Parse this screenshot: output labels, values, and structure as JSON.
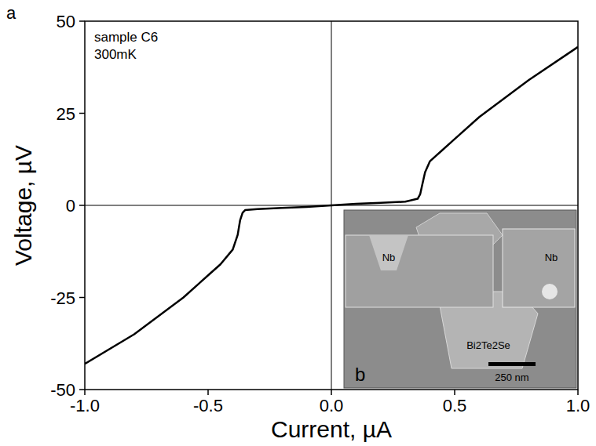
{
  "chart_data": {
    "type": "line",
    "panel_label": "a",
    "annotations": [
      "sample C6",
      "300mK"
    ],
    "x_label": "Current, µA",
    "y_label": "Voltage, µV",
    "x": [
      -1.0,
      -0.8,
      -0.6,
      -0.5,
      -0.45,
      -0.4,
      -0.38,
      -0.37,
      -0.36,
      -0.35,
      -0.3,
      -0.2,
      -0.1,
      0.0,
      0.1,
      0.2,
      0.3,
      0.35,
      0.36,
      0.37,
      0.38,
      0.4,
      0.45,
      0.5,
      0.6,
      0.8,
      1.0
    ],
    "values": [
      -43,
      -35,
      -25,
      -19,
      -16,
      -12,
      -8,
      -4,
      -2,
      -1.3,
      -1,
      -0.7,
      -0.4,
      0,
      0.4,
      0.7,
      1,
      1.8,
      3,
      6,
      9,
      12,
      15,
      18,
      24,
      34,
      43
    ],
    "color": "#000000",
    "xlim": [
      -1.0,
      1.0
    ],
    "xticks": [
      {
        "value": -1.0,
        "label": "-1.0"
      },
      {
        "value": -0.5,
        "label": "-0.5"
      },
      {
        "value": 0.0,
        "label": "0.0"
      },
      {
        "value": 0.5,
        "label": "0.5"
      },
      {
        "value": 1.0,
        "label": "1.0"
      }
    ],
    "ylim": [
      -50,
      50
    ],
    "yticks": [
      -50,
      -25,
      0,
      25,
      50
    ],
    "inset": {
      "label": "b",
      "texts": [
        "Nb",
        "Nb",
        "Bi2Te2Se"
      ],
      "scale_bar": "250 nm"
    }
  }
}
